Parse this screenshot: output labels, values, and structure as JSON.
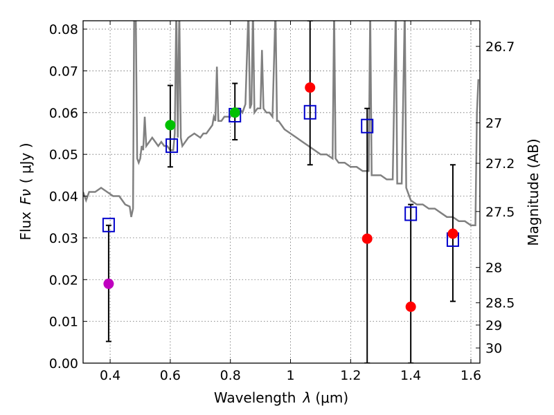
{
  "chart_data": {
    "type": "scatter",
    "xlabel_text": "Wavelength",
    "xlabel_symbol": "λ",
    "xlabel_units": "(μm)",
    "ylabel_text": "Flux",
    "ylabel_symbol": "Fν",
    "ylabel_units": "( μJy )",
    "y2label": "Magnitude (AB)",
    "xlim": [
      0.31,
      1.63
    ],
    "ylim": [
      0.0,
      0.082
    ],
    "grid": true,
    "x_ticks": [
      0.4,
      0.6,
      0.8,
      1.0,
      1.2,
      1.4,
      1.6
    ],
    "x_tick_labels": [
      "0.4",
      "0.6",
      "0.8",
      "1",
      "1.2",
      "1.4",
      "1.6"
    ],
    "y_ticks": [
      0.0,
      0.01,
      0.02,
      0.03,
      0.04,
      0.05,
      0.06,
      0.07,
      0.08
    ],
    "y_tick_labels": [
      "0.00",
      "0.01",
      "0.02",
      "0.03",
      "0.04",
      "0.05",
      "0.06",
      "0.07",
      "0.08"
    ],
    "right_ticks": [
      {
        "label": "26.7",
        "mag": 26.7
      },
      {
        "label": "27",
        "mag": 27.0
      },
      {
        "label": "27.2",
        "mag": 27.2
      },
      {
        "label": "27.5",
        "mag": 27.5
      },
      {
        "label": "28",
        "mag": 28.0
      },
      {
        "label": "28.5",
        "mag": 28.5
      },
      {
        "label": "29",
        "mag": 29.0
      },
      {
        "label": "30",
        "mag": 30.0
      }
    ],
    "sed_model": {
      "name": "model spectrum",
      "color": "#808080",
      "points": [
        [
          0.31,
          0.041
        ],
        [
          0.32,
          0.039
        ],
        [
          0.33,
          0.041
        ],
        [
          0.35,
          0.041
        ],
        [
          0.37,
          0.042
        ],
        [
          0.39,
          0.041
        ],
        [
          0.41,
          0.04
        ],
        [
          0.43,
          0.04
        ],
        [
          0.45,
          0.038
        ],
        [
          0.465,
          0.0375
        ],
        [
          0.47,
          0.035
        ],
        [
          0.476,
          0.037
        ],
        [
          0.48,
          0.085
        ],
        [
          0.485,
          0.085
        ],
        [
          0.49,
          0.049
        ],
        [
          0.495,
          0.048
        ],
        [
          0.5,
          0.049
        ],
        [
          0.505,
          0.052
        ],
        [
          0.51,
          0.051
        ],
        [
          0.515,
          0.059
        ],
        [
          0.52,
          0.052
        ],
        [
          0.53,
          0.053
        ],
        [
          0.54,
          0.054
        ],
        [
          0.55,
          0.053
        ],
        [
          0.56,
          0.052
        ],
        [
          0.57,
          0.053
        ],
        [
          0.58,
          0.052
        ],
        [
          0.59,
          0.052
        ],
        [
          0.6,
          0.051
        ],
        [
          0.61,
          0.051
        ],
        [
          0.615,
          0.055
        ],
        [
          0.62,
          0.085
        ],
        [
          0.625,
          0.054
        ],
        [
          0.63,
          0.085
        ],
        [
          0.635,
          0.054
        ],
        [
          0.64,
          0.052
        ],
        [
          0.66,
          0.054
        ],
        [
          0.68,
          0.055
        ],
        [
          0.7,
          0.054
        ],
        [
          0.71,
          0.055
        ],
        [
          0.72,
          0.055
        ],
        [
          0.73,
          0.056
        ],
        [
          0.74,
          0.057
        ],
        [
          0.745,
          0.059
        ],
        [
          0.75,
          0.058
        ],
        [
          0.755,
          0.071
        ],
        [
          0.76,
          0.058
        ],
        [
          0.77,
          0.058
        ],
        [
          0.78,
          0.059
        ],
        [
          0.79,
          0.059
        ],
        [
          0.8,
          0.059
        ],
        [
          0.81,
          0.06
        ],
        [
          0.82,
          0.061
        ],
        [
          0.83,
          0.061
        ],
        [
          0.84,
          0.06
        ],
        [
          0.85,
          0.062
        ],
        [
          0.86,
          0.085
        ],
        [
          0.865,
          0.061
        ],
        [
          0.87,
          0.062
        ],
        [
          0.875,
          0.085
        ],
        [
          0.88,
          0.06
        ],
        [
          0.89,
          0.061
        ],
        [
          0.9,
          0.061
        ],
        [
          0.905,
          0.075
        ],
        [
          0.91,
          0.061
        ],
        [
          0.92,
          0.06
        ],
        [
          0.93,
          0.06
        ],
        [
          0.94,
          0.059
        ],
        [
          0.95,
          0.085
        ],
        [
          0.955,
          0.058
        ],
        [
          0.96,
          0.058
        ],
        [
          0.97,
          0.057
        ],
        [
          0.98,
          0.056
        ],
        [
          1.0,
          0.055
        ],
        [
          1.02,
          0.054
        ],
        [
          1.04,
          0.053
        ],
        [
          1.06,
          0.052
        ],
        [
          1.08,
          0.051
        ],
        [
          1.1,
          0.05
        ],
        [
          1.12,
          0.05
        ],
        [
          1.14,
          0.049
        ],
        [
          1.145,
          0.085
        ],
        [
          1.15,
          0.049
        ],
        [
          1.16,
          0.048
        ],
        [
          1.18,
          0.048
        ],
        [
          1.2,
          0.047
        ],
        [
          1.22,
          0.047
        ],
        [
          1.24,
          0.046
        ],
        [
          1.26,
          0.046
        ],
        [
          1.265,
          0.085
        ],
        [
          1.27,
          0.045
        ],
        [
          1.28,
          0.045
        ],
        [
          1.3,
          0.045
        ],
        [
          1.32,
          0.044
        ],
        [
          1.34,
          0.044
        ],
        [
          1.35,
          0.085
        ],
        [
          1.355,
          0.043
        ],
        [
          1.37,
          0.043
        ],
        [
          1.38,
          0.085
        ],
        [
          1.385,
          0.042
        ],
        [
          1.4,
          0.039
        ],
        [
          1.42,
          0.038
        ],
        [
          1.44,
          0.038
        ],
        [
          1.46,
          0.037
        ],
        [
          1.48,
          0.037
        ],
        [
          1.5,
          0.036
        ],
        [
          1.52,
          0.035
        ],
        [
          1.54,
          0.035
        ],
        [
          1.56,
          0.034
        ],
        [
          1.58,
          0.034
        ],
        [
          1.6,
          0.033
        ],
        [
          1.615,
          0.033
        ],
        [
          1.62,
          0.06
        ],
        [
          1.625,
          0.068
        ]
      ]
    },
    "observed": [
      {
        "x": 0.395,
        "y": 0.019,
        "err": [
          0.0052,
          0.033
        ],
        "color": "#BF00BF"
      },
      {
        "x": 0.6,
        "y": 0.057,
        "err": [
          0.047,
          0.0665
        ],
        "color": "#00C000"
      },
      {
        "x": 0.815,
        "y": 0.06,
        "err": [
          0.0535,
          0.067
        ],
        "color": "#00C000"
      },
      {
        "x": 1.065,
        "y": 0.066,
        "err": [
          0.0475,
          0.082
        ],
        "color": "#FF0000"
      },
      {
        "x": 1.255,
        "y": 0.0298,
        "err": [
          0.0,
          0.061
        ],
        "color": "#FF0000"
      },
      {
        "x": 1.4,
        "y": 0.0135,
        "err": [
          0.0,
          0.038
        ],
        "color": "#FF0000"
      },
      {
        "x": 1.54,
        "y": 0.031,
        "err": [
          0.0148,
          0.0475
        ],
        "color": "#FF0000"
      }
    ],
    "model_boxes": [
      {
        "x": 0.395,
        "y": 0.033
      },
      {
        "x": 0.605,
        "y": 0.052
      },
      {
        "x": 0.815,
        "y": 0.0593
      },
      {
        "x": 1.065,
        "y": 0.06
      },
      {
        "x": 1.255,
        "y": 0.0567
      },
      {
        "x": 1.4,
        "y": 0.0357
      },
      {
        "x": 1.54,
        "y": 0.0295
      }
    ],
    "colors": {
      "model_box": "#0000CC",
      "errorbar": "#000000",
      "axes": "#000000"
    }
  }
}
